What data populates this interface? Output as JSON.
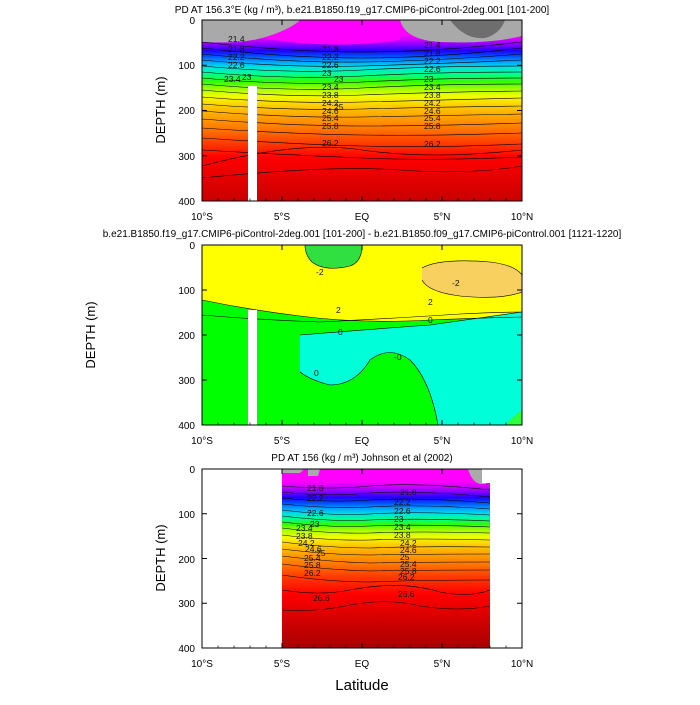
{
  "chart_data": [
    {
      "type": "contour",
      "title": "PD AT 156.3°E (kg / m³), b.e21.B1850.f19_g17.CMIP6-piControl-2deg.001 [101-200]",
      "xlabel": "",
      "ylabel": "DEPTH (m)",
      "xlim": [
        -10,
        10
      ],
      "ylim": [
        400,
        0
      ],
      "xticks": [
        "10°S",
        "5°S",
        "EQ",
        "5°N",
        "10°N"
      ],
      "yticks": [
        "0",
        "100",
        "200",
        "300",
        "400"
      ],
      "contour_labels": [
        "21.4",
        "21.8",
        "22.2",
        "22.6",
        "23",
        "23.4",
        "23.8",
        "24.2",
        "24.6",
        "25",
        "25.4",
        "25.8",
        "26.2"
      ],
      "colors": [
        "#ff00ff",
        "#cc00ff",
        "#7d00ff",
        "#2000ff",
        "#0050ff",
        "#00a0ff",
        "#00e0e0",
        "#00ff90",
        "#30ff00",
        "#a0ff00",
        "#f0ff00",
        "#ffd000",
        "#ffa500",
        "#ff7800",
        "#ff3c00",
        "#ff0000",
        "#d00000"
      ]
    },
    {
      "type": "contour",
      "title": "b.e21.B1850.f19_g17.CMIP6-piControl-2deg.001 [101-200] - b.e21.B1850.f09_g17.CMIP6-piControl.001 [1121-1220]",
      "xlabel": "",
      "ylabel": "DEPTH (m)",
      "xlim": [
        -10,
        10
      ],
      "ylim": [
        400,
        0
      ],
      "xticks": [
        "10°S",
        "5°S",
        "EQ",
        "5°N",
        "10°N"
      ],
      "yticks": [
        "0",
        "100",
        "200",
        "300",
        "400"
      ],
      "contour_labels": [
        "-2",
        "-2",
        "2",
        "0",
        "0",
        "-0",
        "0"
      ],
      "colors": [
        "#ffd860",
        "#ffff00",
        "#00ff00",
        "#00ffd0",
        "#30ff40"
      ]
    },
    {
      "type": "contour",
      "title": "PD AT 156 (kg / m³) Johnson et al (2002)",
      "xlabel": "Latitude",
      "ylabel": "DEPTH (m)",
      "xlim": [
        -10,
        10
      ],
      "ylim": [
        400,
        0
      ],
      "xticks": [
        "10°S",
        "5°S",
        "EQ",
        "5°N",
        "10°N"
      ],
      "yticks": [
        "0",
        "100",
        "200",
        "300",
        "400"
      ],
      "contour_labels": [
        "21.8",
        "22.2",
        "22.6",
        "23",
        "23.4",
        "23.8",
        "24.2",
        "24.6",
        "25",
        "25.4",
        "25.8",
        "26.2",
        "26.6",
        "21.8",
        "22.2",
        "22.6",
        "23",
        "23.4",
        "23.8",
        "24.2",
        "24.6",
        "25",
        "25.4",
        "25.8",
        "26.2",
        "26.6"
      ],
      "colors": [
        "#ff00ff",
        "#cc00ff",
        "#7d00ff",
        "#2000ff",
        "#0050ff",
        "#00a0ff",
        "#00e0e0",
        "#00ff90",
        "#30ff00",
        "#a0ff00",
        "#f0ff00",
        "#ffd000",
        "#ffa500",
        "#ff7800",
        "#ff3c00",
        "#ff0000",
        "#d00000",
        "#b00000"
      ]
    }
  ]
}
